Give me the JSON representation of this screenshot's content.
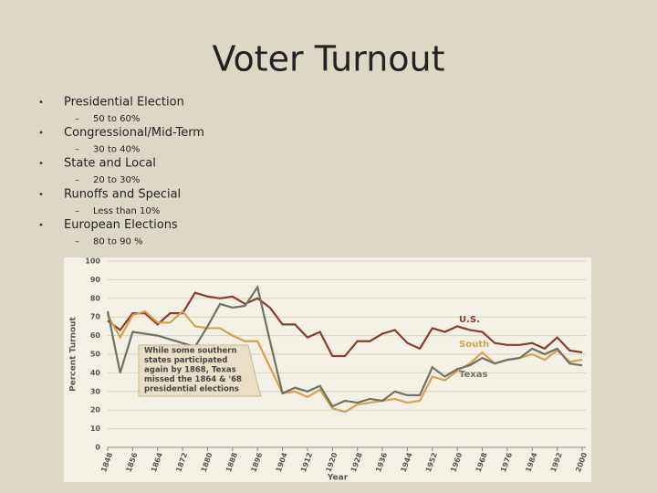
{
  "slide": {
    "title": "Voter Turnout",
    "bullets": [
      {
        "text": "Presidential Election",
        "sub": "50 to 60%"
      },
      {
        "text": "Congressional/Mid-Term",
        "sub": "30 to 40%"
      },
      {
        "text": "State and Local",
        "sub": "20 to 30%"
      },
      {
        "text": "Runoffs and Special",
        "sub": "Less than 10%"
      },
      {
        "text": "European Elections",
        "sub": "80 to 90 %"
      }
    ]
  },
  "chart_data": {
    "type": "line",
    "xlabel": "Year",
    "ylabel": "Percent Turnout",
    "x": [
      1848,
      1852,
      1856,
      1860,
      1864,
      1868,
      1872,
      1876,
      1880,
      1884,
      1888,
      1892,
      1896,
      1900,
      1904,
      1908,
      1912,
      1916,
      1920,
      1924,
      1928,
      1932,
      1936,
      1940,
      1944,
      1948,
      1952,
      1956,
      1960,
      1964,
      1968,
      1972,
      1976,
      1980,
      1984,
      1988,
      1992,
      1996,
      2000
    ],
    "xlim": [
      1848,
      2000
    ],
    "xticks": [
      1848,
      1856,
      1864,
      1872,
      1880,
      1888,
      1896,
      1904,
      1912,
      1920,
      1928,
      1936,
      1944,
      1952,
      1960,
      1968,
      1976,
      1984,
      1992,
      2000
    ],
    "ylim": [
      0,
      100
    ],
    "yticks": [
      0,
      10,
      20,
      30,
      40,
      50,
      60,
      70,
      80,
      90,
      100
    ],
    "grid": true,
    "series": [
      {
        "name": "U.S.",
        "color": "#8a3b2b",
        "values": [
          68,
          63,
          72,
          72,
          66,
          72,
          72,
          83,
          81,
          80,
          81,
          77,
          80,
          75,
          66,
          66,
          59,
          62,
          49,
          49,
          57,
          57,
          61,
          63,
          56,
          53,
          64,
          62,
          65,
          63,
          62,
          56,
          55,
          55,
          56,
          53,
          59,
          52,
          51
        ]
      },
      {
        "name": "South",
        "color": "#d6a24e",
        "values": [
          71,
          59,
          71,
          73,
          67,
          67,
          73,
          65,
          64,
          64,
          60,
          57,
          57,
          43,
          29,
          30,
          27,
          31,
          21,
          19,
          23,
          24,
          25,
          26,
          24,
          25,
          38,
          36,
          41,
          45,
          51,
          45,
          47,
          48,
          50,
          47,
          52,
          46,
          47
        ]
      },
      {
        "name": "Texas",
        "color": "#6e7262",
        "values": [
          73,
          40,
          62,
          61,
          60,
          58,
          56,
          54,
          65,
          77,
          75,
          76,
          86,
          57,
          29,
          32,
          30,
          33,
          22,
          25,
          24,
          26,
          25,
          30,
          28,
          28,
          43,
          38,
          42,
          44,
          48,
          45,
          47,
          48,
          53,
          50,
          53,
          45,
          44
        ]
      }
    ],
    "annotation": [
      "While some southern",
      "states participated",
      "again by 1868, Texas",
      "missed the 1864 & '68",
      "presidential elections"
    ]
  }
}
